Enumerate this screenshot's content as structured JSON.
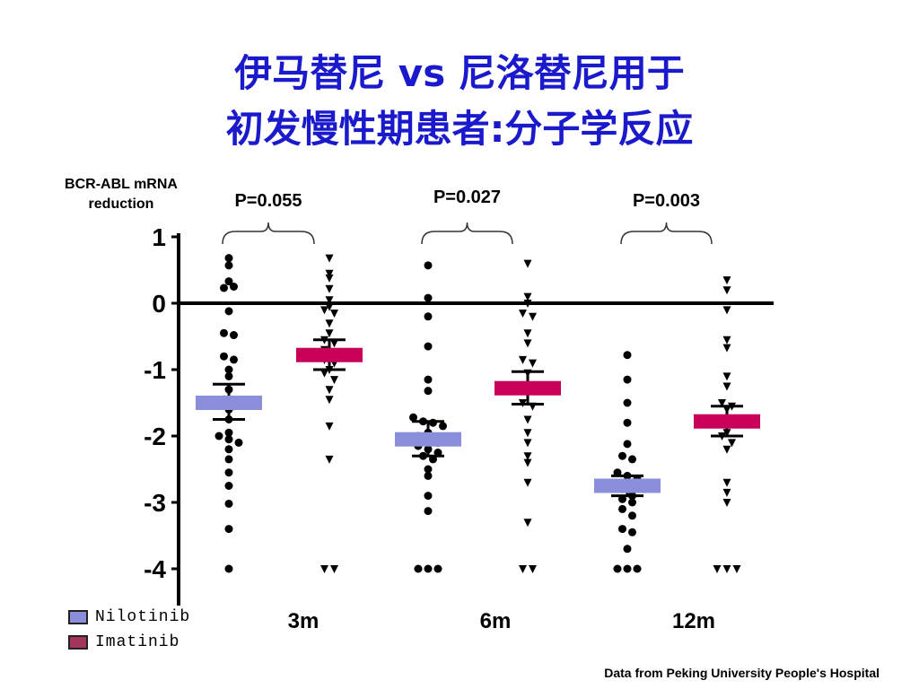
{
  "title_line1": "伊马替尼 vs 尼洛替尼用于",
  "title_line2": "初发慢性期患者:分子学反应",
  "ylabel": "BCR-ABL mRNA reduction",
  "footer": "Data from Peking University People's Hospital",
  "legend": [
    {
      "label": "Nilotinib",
      "color": "#8b8fdb"
    },
    {
      "label": "Imatinib",
      "color": "#a3345e"
    }
  ],
  "chart_data": {
    "type": "scatter",
    "ylabel": "BCR-ABL mRNA reduction",
    "ylim": [
      -4,
      1
    ],
    "yticks": [
      1,
      0,
      -1,
      -2,
      -3,
      -4
    ],
    "categories": [
      "3m",
      "6m",
      "12m"
    ],
    "p_values": [
      "P=0.055",
      "P=0.027",
      "P=0.003"
    ],
    "series": [
      {
        "name": "Nilotinib",
        "marker": "circle",
        "color": "#8b8fdb",
        "groups": [
          {
            "mean": -1.5,
            "sem_low": -1.75,
            "sem_high": -1.22,
            "values": [
              0.68,
              0.57,
              0.33,
              0.23,
              0.25,
              -0.12,
              -0.45,
              -0.48,
              -0.8,
              -0.85,
              -1.0,
              -1.1,
              -1.3,
              -1.45,
              -1.55,
              -1.6,
              -1.75,
              -1.95,
              -2.0,
              -2.05,
              -2.1,
              -2.2,
              -2.35,
              -2.55,
              -2.75,
              -3.02,
              -3.4,
              -4.0
            ]
          },
          {
            "mean": -2.05,
            "sem_low": -2.3,
            "sem_high": -1.78,
            "values": [
              0.57,
              0.08,
              -0.2,
              -0.65,
              -1.15,
              -1.32,
              -1.72,
              -1.78,
              -1.8,
              -1.85,
              -1.95,
              -2.0,
              -2.05,
              -2.1,
              -2.15,
              -2.2,
              -2.25,
              -2.3,
              -2.35,
              -2.5,
              -2.6,
              -2.9,
              -3.13,
              -4.0,
              -4.0,
              -4.0
            ]
          },
          {
            "mean": -2.75,
            "sem_low": -2.9,
            "sem_high": -2.6,
            "values": [
              -0.78,
              -1.15,
              -1.5,
              -1.8,
              -2.12,
              -2.3,
              -2.35,
              -2.55,
              -2.6,
              -2.65,
              -2.7,
              -2.8,
              -2.9,
              -2.95,
              -3.0,
              -3.1,
              -3.2,
              -3.4,
              -3.45,
              -3.7,
              -4.0,
              -4.0,
              -4.0
            ]
          }
        ]
      },
      {
        "name": "Imatinib",
        "marker": "triangle-down",
        "color": "#c8005a",
        "groups": [
          {
            "mean": -0.78,
            "sem_low": -1.0,
            "sem_high": -0.55,
            "values": [
              0.68,
              0.45,
              0.38,
              0.22,
              0.05,
              -0.05,
              -0.1,
              -0.15,
              -0.3,
              -0.45,
              -0.55,
              -0.6,
              -0.7,
              -0.75,
              -0.85,
              -0.9,
              -1.0,
              -1.05,
              -1.15,
              -1.3,
              -1.45,
              -1.85,
              -2.35,
              -4.0,
              -4.0
            ]
          },
          {
            "mean": -1.28,
            "sem_low": -1.52,
            "sem_high": -1.03,
            "values": [
              0.6,
              0.1,
              0.0,
              -0.15,
              -0.2,
              -0.45,
              -0.6,
              -0.85,
              -0.9,
              -1.05,
              -1.25,
              -1.35,
              -1.5,
              -1.55,
              -1.75,
              -1.95,
              -2.1,
              -2.3,
              -2.4,
              -2.7,
              -3.3,
              -4.0,
              -4.0
            ]
          },
          {
            "mean": -1.78,
            "sem_low": -2.0,
            "sem_high": -1.55,
            "values": [
              0.35,
              0.2,
              -0.1,
              -0.55,
              -0.67,
              -1.1,
              -1.25,
              -1.5,
              -1.55,
              -1.6,
              -1.75,
              -1.8,
              -1.95,
              -2.0,
              -2.1,
              -2.2,
              -2.7,
              -2.85,
              -3.0,
              -4.0,
              -4.0,
              -4.0
            ]
          }
        ]
      }
    ]
  }
}
